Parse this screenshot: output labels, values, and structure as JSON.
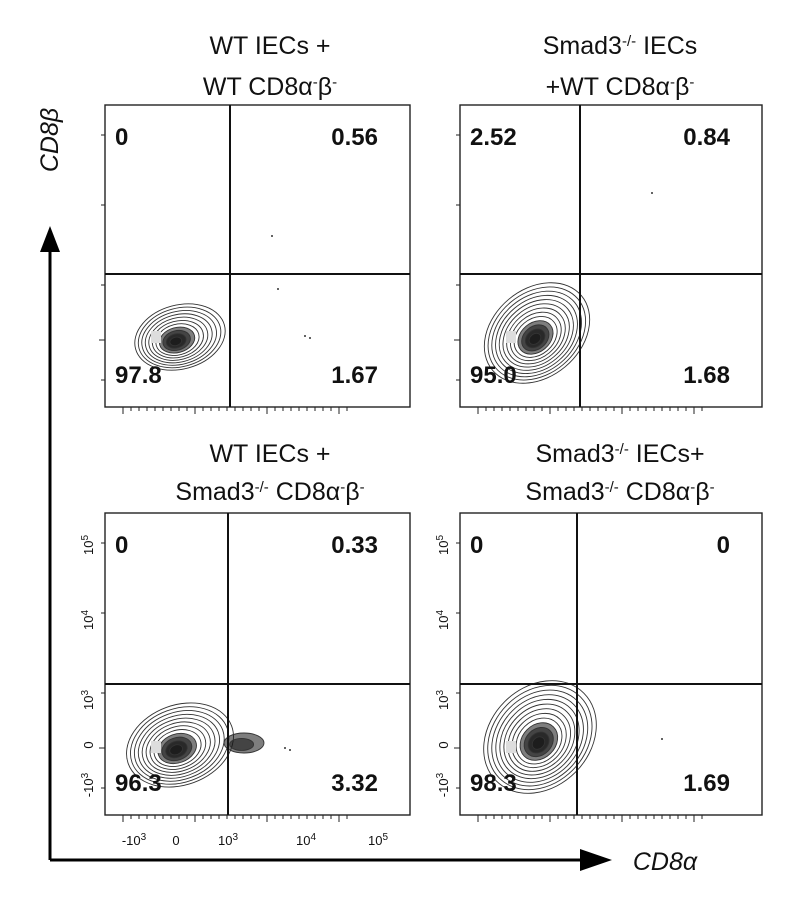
{
  "chart_data": {
    "type": "contour-flow-cytometry",
    "xlabel": "CD8α",
    "ylabel": "CD8β",
    "x_ticks": [
      {
        "base": "-10",
        "exp": "3"
      },
      {
        "base": "0",
        "exp": ""
      },
      {
        "base": "10",
        "exp": "3"
      },
      {
        "base": "10",
        "exp": "4"
      },
      {
        "base": "10",
        "exp": "5"
      }
    ],
    "y_ticks": [
      {
        "base": "-10",
        "exp": "3"
      },
      {
        "base": "0",
        "exp": ""
      },
      {
        "base": "10",
        "exp": "3"
      },
      {
        "base": "10",
        "exp": "4"
      },
      {
        "base": "10",
        "exp": "5"
      }
    ],
    "panels": [
      {
        "title_lines": [
          [
            {
              "t": "WT IECs +",
              "s": false
            }
          ],
          [
            {
              "t": "WT CD8α",
              "s": false
            },
            {
              "t": "-",
              "s": true
            },
            {
              "t": "β",
              "s": false
            },
            {
              "t": "-",
              "s": true
            }
          ]
        ],
        "quadrants": {
          "upper_left": "0",
          "upper_right": "0.56",
          "lower_left": "97.8",
          "lower_right": "1.67"
        }
      },
      {
        "title_lines": [
          [
            {
              "t": "Smad3",
              "s": false
            },
            {
              "t": "-/-",
              "s": true
            },
            {
              "t": "  IECs",
              "s": false
            }
          ],
          [
            {
              "t": "+WT CD8α",
              "s": false
            },
            {
              "t": "-",
              "s": true
            },
            {
              "t": "β",
              "s": false
            },
            {
              "t": "-",
              "s": true
            }
          ]
        ],
        "quadrants": {
          "upper_left": "2.52",
          "upper_right": "0.84",
          "lower_left": "95.0",
          "lower_right": "1.68"
        }
      },
      {
        "title_lines": [
          [
            {
              "t": "WT IECs +",
              "s": false
            }
          ],
          [
            {
              "t": "Smad3",
              "s": false
            },
            {
              "t": "-/-",
              "s": true
            },
            {
              "t": "  CD8α",
              "s": false
            },
            {
              "t": "-",
              "s": true
            },
            {
              "t": "β",
              "s": false
            },
            {
              "t": "-",
              "s": true
            }
          ]
        ],
        "quadrants": {
          "upper_left": "0",
          "upper_right": "0.33",
          "lower_left": "96.3",
          "lower_right": "3.32"
        }
      },
      {
        "title_lines": [
          [
            {
              "t": "Smad3",
              "s": false
            },
            {
              "t": "-/-",
              "s": true
            },
            {
              "t": "  IECs+",
              "s": false
            }
          ],
          [
            {
              "t": "Smad3",
              "s": false
            },
            {
              "t": "-/-",
              "s": true
            },
            {
              "t": "  CD8α",
              "s": false
            },
            {
              "t": "-",
              "s": true
            },
            {
              "t": "β",
              "s": false
            },
            {
              "t": "-",
              "s": true
            }
          ]
        ],
        "quadrants": {
          "upper_left": "0",
          "upper_right": "0",
          "lower_left": "98.3",
          "lower_right": "1.69"
        }
      }
    ]
  }
}
